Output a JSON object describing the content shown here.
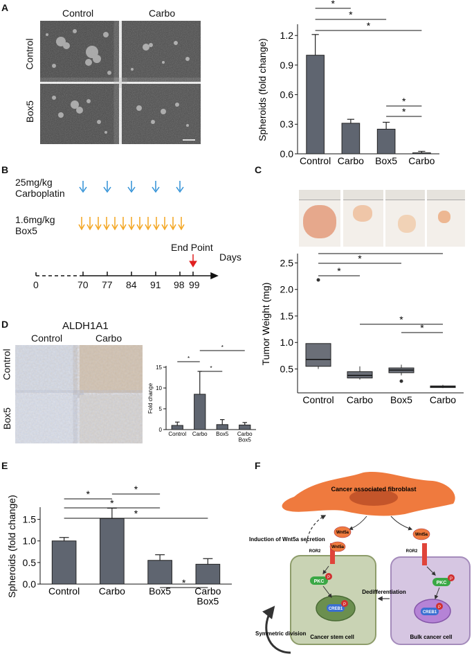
{
  "panels": {
    "A": "A",
    "B": "B",
    "C": "C",
    "D": "D",
    "E": "E",
    "F": "F"
  },
  "panel_a": {
    "col_labels": [
      "Control",
      "Carbo"
    ],
    "row_labels": [
      "Control",
      "Box5"
    ]
  },
  "panel_b": {
    "carboplatin_dose": "25mg/kg",
    "carboplatin_label": "Carboplatin",
    "box5_dose": "1.6mg/kg",
    "box5_label": "Box5",
    "end_point": "End Point",
    "days_label": "Days",
    "ticks": [
      "0",
      "70",
      "77",
      "84",
      "91",
      "98",
      "99"
    ]
  },
  "panel_d": {
    "title": "ALDH1A1",
    "col_labels": [
      "Control",
      "Carbo"
    ],
    "row_labels": [
      "Control",
      "Box5"
    ]
  },
  "panel_f": {
    "caf": "Cancer associated fibroblast",
    "wnt5a": "Wnt5a",
    "ror2": "ROR2",
    "pkc": "PKC",
    "creb1": "CREB1",
    "p": "P",
    "induction": "Induction of Wnt5a secretion",
    "dedifferentiation": "Dedifferentiation",
    "symmetric": "Symmetric division",
    "csc": "Cancer stem cell",
    "bulk": "Bulk cancer cell"
  },
  "colors": {
    "bar": "#5f6570",
    "box": "#6b6f78",
    "blue_arrow": "#2d8fd6",
    "orange_arrow": "#f3a41e",
    "red_arrow": "#e02020",
    "fibroblast": "#ef7a3e",
    "stem": "#c9d3b4",
    "bulk": "#d6c6e2"
  },
  "chart_data": [
    {
      "id": "A",
      "type": "bar",
      "categories": [
        "Control",
        "Carbo",
        "Box5",
        "Carbo\nBox5"
      ],
      "values": [
        1.0,
        0.31,
        0.25,
        0.01
      ],
      "errors": [
        0.21,
        0.04,
        0.07,
        0.015
      ],
      "ylabel": "Spheroids (fold change)",
      "yticks": [
        "0.0",
        "0.3",
        "0.6",
        "0.9",
        "1.2"
      ],
      "ylim": [
        0,
        1.3
      ],
      "significance": "*"
    },
    {
      "id": "C",
      "type": "box",
      "categories": [
        "Control",
        "Carbo",
        "Box5",
        "Carbo\nBox5"
      ],
      "boxes": [
        {
          "min": 0.5,
          "q1": 0.55,
          "median": 0.68,
          "q3": 0.98,
          "max": 0.98,
          "outliers": [
            2.18
          ]
        },
        {
          "min": 0.3,
          "q1": 0.33,
          "median": 0.38,
          "q3": 0.45,
          "max": 0.55,
          "outliers": []
        },
        {
          "min": 0.38,
          "q1": 0.43,
          "median": 0.48,
          "q3": 0.52,
          "max": 0.58,
          "outliers": [
            0.27
          ]
        },
        {
          "min": 0.14,
          "q1": 0.15,
          "median": 0.17,
          "q3": 0.18,
          "max": 0.2,
          "outliers": []
        }
      ],
      "ylabel": "Tumor Weight (mg)",
      "yticks": [
        "0.5",
        "1.0",
        "1.5",
        "2.0",
        "2.5"
      ],
      "ylim": [
        0.05,
        2.65
      ],
      "significance": "*"
    },
    {
      "id": "D",
      "type": "bar",
      "categories": [
        "Control",
        "Carbo",
        "Box5",
        "Carbo\nBox5"
      ],
      "values": [
        1.0,
        8.5,
        1.2,
        1.1
      ],
      "errors": [
        0.8,
        5.5,
        1.2,
        0.6
      ],
      "ylabel": "Fold change",
      "yticks": [
        "0",
        "5",
        "10",
        "15"
      ],
      "ylim": [
        0,
        15
      ],
      "significance": "*"
    },
    {
      "id": "E",
      "type": "bar",
      "categories": [
        "Control",
        "Carbo",
        "Box5",
        "Carbo\nBox5"
      ],
      "values": [
        1.0,
        1.52,
        0.55,
        0.46
      ],
      "errors": [
        0.08,
        0.24,
        0.13,
        0.13
      ],
      "ylabel": "Spheroids (fold change)",
      "yticks": [
        "0.0",
        "0.5",
        "1.0",
        "1.5"
      ],
      "ylim": [
        0,
        1.75
      ],
      "significance": "*"
    }
  ]
}
